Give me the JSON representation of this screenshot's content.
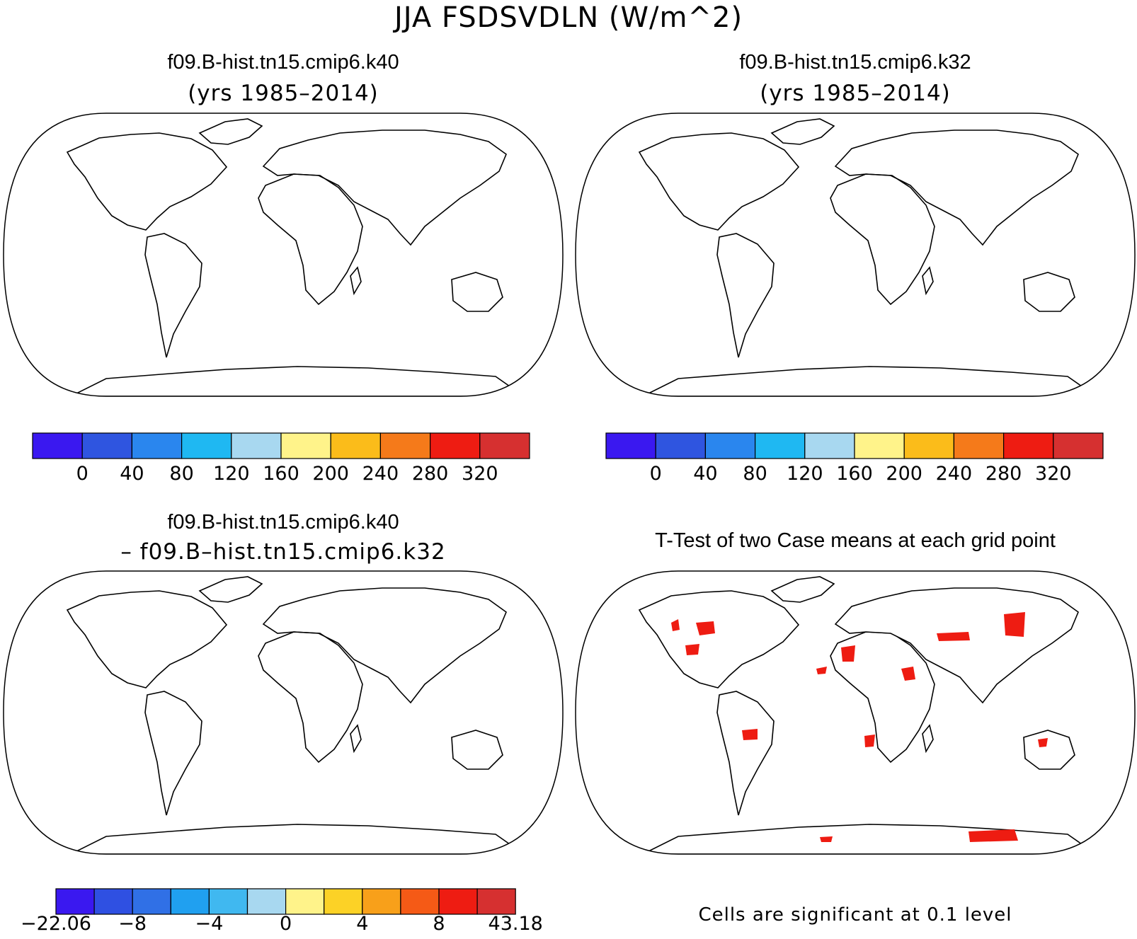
{
  "main_title": "JJA FSDSVDLN (W/m^2)",
  "panels": [
    {
      "title": "f09.B-hist.tn15.cmip6.k40",
      "subtitle": "(yrs 1985–2014)"
    },
    {
      "title": "f09.B-hist.tn15.cmip6.k32",
      "subtitle": "(yrs 1985–2014)"
    },
    {
      "title": "f09.B-hist.tn15.cmip6.k40",
      "subtitle": "– f09.B–hist.tn15.cmip6.k32"
    },
    {
      "title": "T-Test of two Case means at each grid point",
      "subtitle": ""
    }
  ],
  "colorbar_abs": {
    "colors": [
      "#3a18f0",
      "#2f55e0",
      "#2a86ee",
      "#1fb8f2",
      "#a8d8f0",
      "#fff38a",
      "#fbbc1a",
      "#f57a1a",
      "#ee1c12",
      "#d63030"
    ],
    "labels": [
      "0",
      "40",
      "80",
      "120",
      "160",
      "200",
      "240",
      "280",
      "320"
    ]
  },
  "colorbar_diff": {
    "colors": [
      "#3a18f0",
      "#2f50e2",
      "#3070e6",
      "#20a0f0",
      "#40b8f0",
      "#a8d8f0",
      "#fff38a",
      "#fcd226",
      "#f8a01a",
      "#f55a16",
      "#ee1c12",
      "#d63030"
    ],
    "labels": [
      "−22.06",
      "−8",
      "−4",
      "0",
      "4",
      "8",
      "43.18"
    ]
  },
  "significance_note": "Cells are significant at 0.1 level"
}
